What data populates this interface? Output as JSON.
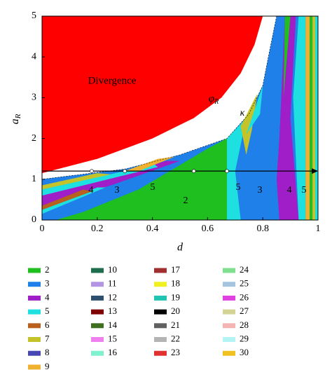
{
  "chart_data": {
    "type": "region",
    "x_label": "d",
    "y_label": "a",
    "y_label_sub": "R",
    "xlim": [
      0,
      1
    ],
    "ylim": [
      0,
      5
    ],
    "xticks": [
      0,
      0.2,
      0.4,
      0.6,
      0.8,
      1
    ],
    "yticks": [
      0,
      1,
      2,
      3,
      4,
      5
    ],
    "annotations": [
      "Divergence",
      "κ",
      "4",
      "3",
      "5",
      "2",
      "5",
      "3",
      "4",
      "5"
    ],
    "curve_label": "φ",
    "curve_label_sub": "R",
    "series": [
      {
        "name": "2",
        "color": "#1fbf1f"
      },
      {
        "name": "3",
        "color": "#1e80e8"
      },
      {
        "name": "4",
        "color": "#a01ec8"
      },
      {
        "name": "5",
        "color": "#1ee0e0"
      },
      {
        "name": "6",
        "color": "#b8601e"
      },
      {
        "name": "7",
        "color": "#c4c42a"
      },
      {
        "name": "8",
        "color": "#4646b4"
      },
      {
        "name": "9",
        "color": "#f0b030"
      },
      {
        "name": "10",
        "color": "#1e6e4e"
      },
      {
        "name": "11",
        "color": "#b494e4"
      },
      {
        "name": "12",
        "color": "#2e4e6e"
      },
      {
        "name": "13",
        "color": "#7e0000"
      },
      {
        "name": "14",
        "color": "#3e6e1e"
      },
      {
        "name": "15",
        "color": "#f080f0"
      },
      {
        "name": "16",
        "color": "#80f0d0"
      },
      {
        "name": "17",
        "color": "#a03030"
      },
      {
        "name": "18",
        "color": "#f0f020"
      },
      {
        "name": "19",
        "color": "#20c4b0"
      },
      {
        "name": "20",
        "color": "#000000"
      },
      {
        "name": "21",
        "color": "#606060"
      },
      {
        "name": "22",
        "color": "#b4b4b4"
      },
      {
        "name": "23",
        "color": "#e03030"
      },
      {
        "name": "24",
        "color": "#80e090"
      },
      {
        "name": "25",
        "color": "#a4c4e0"
      },
      {
        "name": "26",
        "color": "#e040e0"
      },
      {
        "name": "27",
        "color": "#d4d494"
      },
      {
        "name": "28",
        "color": "#f4b4b4"
      },
      {
        "name": "29",
        "color": "#b4f4f4"
      },
      {
        "name": "30",
        "color": "#f0c020"
      }
    ],
    "divergence_color": "#ff0000"
  }
}
